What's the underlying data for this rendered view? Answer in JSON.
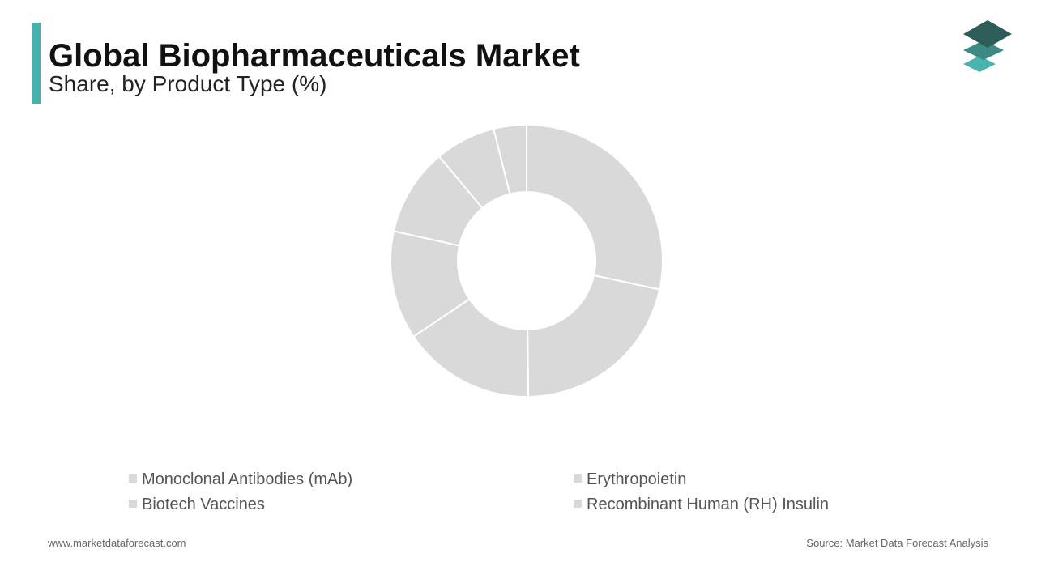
{
  "chart_data": {
    "type": "donut",
    "title": "Global Biopharmaceuticals Market",
    "subtitle": "Share, by Product Type (%)",
    "categories": [
      "Monoclonal Antibodies (mAb)",
      "Erythropoietin",
      "Biotech Vaccines",
      "Recombinant Human (RH) Insulin",
      null,
      null,
      null
    ],
    "values": [
      28.4,
      21.4,
      15.8,
      12.9,
      10.4,
      7.2,
      3.9
    ],
    "color": "#d9d9d9"
  },
  "footer": {
    "website": "www.marketdataforecast.com",
    "source": "Source: Market Data Forecast Analysis"
  }
}
